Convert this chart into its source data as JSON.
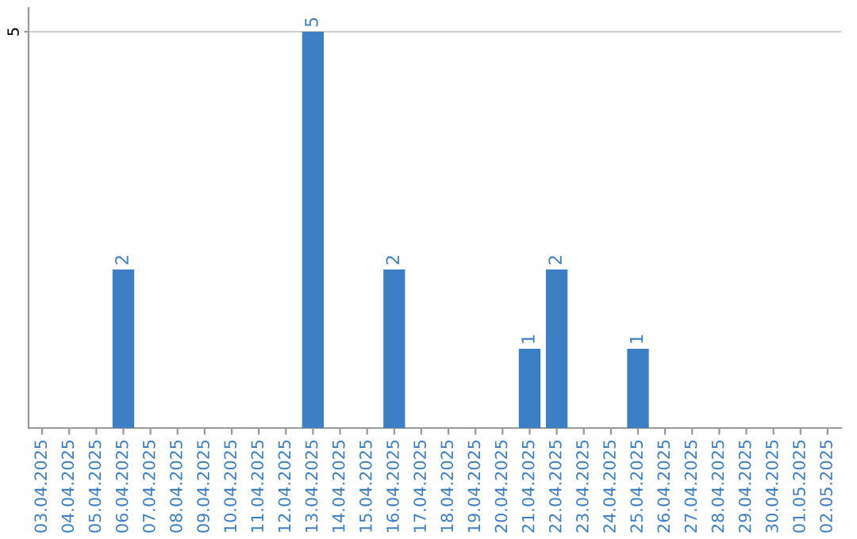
{
  "chart_data": {
    "type": "bar",
    "categories": [
      "03.04.2025",
      "04.04.2025",
      "05.04.2025",
      "06.04.2025",
      "07.04.2025",
      "08.04.2025",
      "09.04.2025",
      "10.04.2025",
      "11.04.2025",
      "12.04.2025",
      "13.04.2025",
      "14.04.2025",
      "15.04.2025",
      "16.04.2025",
      "17.04.2025",
      "18.04.2025",
      "19.04.2025",
      "20.04.2025",
      "21.04.2025",
      "22.04.2025",
      "23.04.2025",
      "24.04.2025",
      "25.04.2025",
      "26.04.2025",
      "27.04.2025",
      "28.04.2025",
      "29.04.2025",
      "30.04.2025",
      "01.05.2025",
      "02.05.2025"
    ],
    "values": [
      0,
      0,
      0,
      2,
      0,
      0,
      0,
      0,
      0,
      0,
      5,
      0,
      0,
      2,
      0,
      0,
      0,
      0,
      1,
      2,
      0,
      0,
      1,
      0,
      0,
      0,
      0,
      0,
      0,
      0
    ],
    "value_labels": [
      null,
      null,
      null,
      "2",
      null,
      null,
      null,
      null,
      null,
      null,
      "5",
      null,
      null,
      "2",
      null,
      null,
      null,
      null,
      "1",
      "2",
      null,
      null,
      "1",
      null,
      null,
      null,
      null,
      null,
      null,
      null
    ],
    "color": "#3d7fc4",
    "ylim": [
      0,
      5.3
    ],
    "yticks": [
      5
    ],
    "grid": "y"
  }
}
